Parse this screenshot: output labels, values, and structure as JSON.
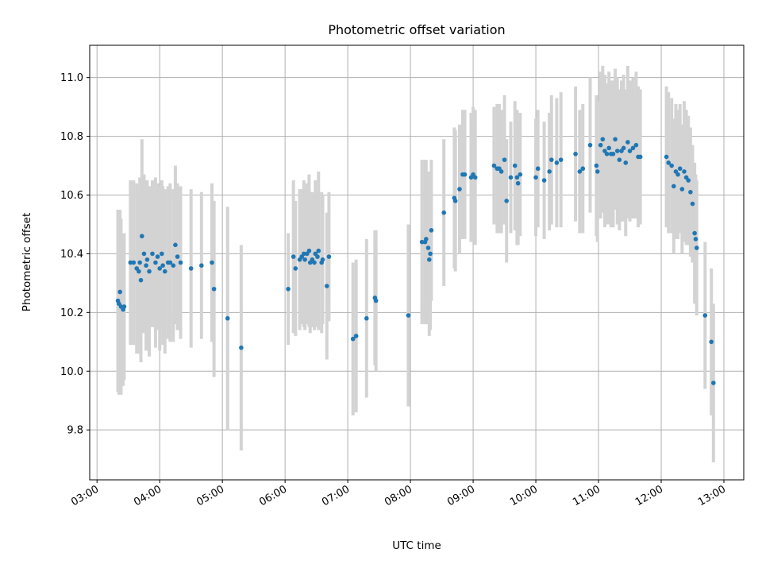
{
  "chart_data": {
    "type": "scatter",
    "title": "Photometric offset variation",
    "xlabel": "UTC time",
    "ylabel": "Photometric offset",
    "x_ticks": [
      "03:00",
      "04:00",
      "05:00",
      "06:00",
      "07:00",
      "08:00",
      "09:00",
      "10:00",
      "11:00",
      "12:00",
      "13:00"
    ],
    "y_ticks": [
      "9.8",
      "10.0",
      "10.2",
      "10.4",
      "10.6",
      "10.8",
      "11.0"
    ],
    "xlim": [
      "02:53",
      "13:19"
    ],
    "ylim": [
      9.63,
      11.11
    ],
    "grid": true,
    "colors": {
      "points": "#1f77b4",
      "error_bars": "#d3d3d3"
    },
    "series": [
      {
        "error_bars": true,
        "points": [
          [
            "03:20",
            10.24,
            0.31
          ],
          [
            "03:21",
            10.23,
            0.31
          ],
          [
            "03:22",
            10.27,
            0.28
          ],
          [
            "03:23",
            10.22,
            0.3
          ],
          [
            "03:25",
            10.21,
            0.26
          ],
          [
            "03:26",
            10.22,
            0.25
          ],
          [
            "03:32",
            10.37,
            0.28
          ],
          [
            "03:35",
            10.37,
            0.28
          ],
          [
            "03:38",
            10.35,
            0.29
          ],
          [
            "03:40",
            10.34,
            0.28
          ],
          [
            "03:41",
            10.37,
            0.29
          ],
          [
            "03:42",
            10.31,
            0.28
          ],
          [
            "03:43",
            10.46,
            0.33
          ],
          [
            "03:45",
            10.4,
            0.27
          ],
          [
            "03:47",
            10.36,
            0.29
          ],
          [
            "03:48",
            10.38,
            0.27
          ],
          [
            "03:50",
            10.34,
            0.29
          ],
          [
            "03:53",
            10.4,
            0.25
          ],
          [
            "03:56",
            10.37,
            0.29
          ],
          [
            "03:58",
            10.39,
            0.25
          ],
          [
            "04:00",
            10.35,
            0.28
          ],
          [
            "04:02",
            10.4,
            0.25
          ],
          [
            "04:03",
            10.36,
            0.27
          ],
          [
            "04:05",
            10.34,
            0.28
          ],
          [
            "04:08",
            10.37,
            0.26
          ],
          [
            "04:10",
            10.37,
            0.27
          ],
          [
            "04:13",
            10.36,
            0.26
          ],
          [
            "04:15",
            10.43,
            0.27
          ],
          [
            "04:17",
            10.39,
            0.25
          ],
          [
            "04:20",
            10.37,
            0.26
          ],
          [
            "04:30",
            10.35,
            0.27
          ],
          [
            "04:40",
            10.36,
            0.25
          ],
          [
            "04:50",
            10.37,
            0.27
          ],
          [
            "04:52",
            10.28,
            0.3
          ],
          [
            "05:05",
            10.18,
            0.38
          ],
          [
            "05:18",
            10.08,
            0.35
          ],
          [
            "06:03",
            10.28,
            0.19
          ],
          [
            "06:08",
            10.39,
            0.26
          ],
          [
            "06:10",
            10.35,
            0.23
          ],
          [
            "06:14",
            10.38,
            0.24
          ],
          [
            "06:16",
            10.39,
            0.23
          ],
          [
            "06:18",
            10.4,
            0.25
          ],
          [
            "06:19",
            10.38,
            0.24
          ],
          [
            "06:21",
            10.4,
            0.24
          ],
          [
            "06:23",
            10.41,
            0.26
          ],
          [
            "06:24",
            10.37,
            0.24
          ],
          [
            "06:26",
            10.38,
            0.23
          ],
          [
            "06:28",
            10.37,
            0.23
          ],
          [
            "06:29",
            10.4,
            0.25
          ],
          [
            "06:31",
            10.39,
            0.22
          ],
          [
            "06:32",
            10.41,
            0.27
          ],
          [
            "06:35",
            10.37,
            0.24
          ],
          [
            "06:36",
            10.38,
            0.22
          ],
          [
            "06:40",
            10.29,
            0.25
          ],
          [
            "06:42",
            10.39,
            0.22
          ],
          [
            "07:05",
            10.11,
            0.26
          ],
          [
            "07:08",
            10.12,
            0.26
          ],
          [
            "07:18",
            10.18,
            0.27
          ],
          [
            "07:26",
            10.25,
            0.23
          ],
          [
            "07:27",
            10.24,
            0.24
          ],
          [
            "07:58",
            10.19,
            0.31
          ],
          [
            "08:11",
            10.44,
            0.28
          ],
          [
            "08:14",
            10.44,
            0.28
          ],
          [
            "08:15",
            10.45,
            0.27
          ],
          [
            "08:17",
            10.42,
            0.26
          ],
          [
            "08:18",
            10.38,
            0.26
          ],
          [
            "08:19",
            10.4,
            0.26
          ],
          [
            "08:20",
            10.48,
            0.24
          ],
          [
            "08:32",
            10.54,
            0.25
          ],
          [
            "08:42",
            10.59,
            0.24
          ],
          [
            "08:43",
            10.58,
            0.24
          ],
          [
            "08:47",
            10.62,
            0.22
          ],
          [
            "08:50",
            10.67,
            0.22
          ],
          [
            "08:52",
            10.67,
            0.22
          ],
          [
            "08:58",
            10.66,
            0.22
          ],
          [
            "09:00",
            10.67,
            0.23
          ],
          [
            "09:02",
            10.66,
            0.23
          ],
          [
            "09:20",
            10.7,
            0.2
          ],
          [
            "09:23",
            10.69,
            0.22
          ],
          [
            "09:25",
            10.69,
            0.22
          ],
          [
            "09:27",
            10.68,
            0.21
          ],
          [
            "09:30",
            10.72,
            0.22
          ],
          [
            "09:32",
            10.58,
            0.21
          ],
          [
            "09:36",
            10.66,
            0.19
          ],
          [
            "09:40",
            10.7,
            0.22
          ],
          [
            "09:42",
            10.66,
            0.23
          ],
          [
            "09:43",
            10.64,
            0.21
          ],
          [
            "09:45",
            10.67,
            0.21
          ],
          [
            "10:00",
            10.66,
            0.2
          ],
          [
            "10:02",
            10.69,
            0.2
          ],
          [
            "10:08",
            10.65,
            0.2
          ],
          [
            "10:13",
            10.68,
            0.2
          ],
          [
            "10:15",
            10.72,
            0.22
          ],
          [
            "10:20",
            10.71,
            0.22
          ],
          [
            "10:24",
            10.72,
            0.23
          ],
          [
            "10:38",
            10.74,
            0.23
          ],
          [
            "10:42",
            10.68,
            0.21
          ],
          [
            "10:45",
            10.69,
            0.22
          ],
          [
            "10:52",
            10.77,
            0.23
          ],
          [
            "10:58",
            10.7,
            0.24
          ],
          [
            "10:59",
            10.68,
            0.24
          ],
          [
            "11:02",
            10.77,
            0.25
          ],
          [
            "11:04",
            10.79,
            0.25
          ],
          [
            "11:06",
            10.75,
            0.26
          ],
          [
            "11:08",
            10.74,
            0.24
          ],
          [
            "11:10",
            10.76,
            0.26
          ],
          [
            "11:12",
            10.74,
            0.25
          ],
          [
            "11:14",
            10.74,
            0.25
          ],
          [
            "11:16",
            10.79,
            0.24
          ],
          [
            "11:18",
            10.75,
            0.25
          ],
          [
            "11:20",
            10.72,
            0.24
          ],
          [
            "11:22",
            10.75,
            0.24
          ],
          [
            "11:24",
            10.76,
            0.25
          ],
          [
            "11:26",
            10.71,
            0.25
          ],
          [
            "11:28",
            10.78,
            0.26
          ],
          [
            "11:30",
            10.75,
            0.24
          ],
          [
            "11:33",
            10.76,
            0.24
          ],
          [
            "11:36",
            10.77,
            0.25
          ],
          [
            "11:38",
            10.73,
            0.24
          ],
          [
            "11:40",
            10.73,
            0.23
          ],
          [
            "12:05",
            10.73,
            0.24
          ],
          [
            "12:07",
            10.71,
            0.24
          ],
          [
            "12:10",
            10.7,
            0.23
          ],
          [
            "12:12",
            10.63,
            0.23
          ],
          [
            "12:14",
            10.68,
            0.23
          ],
          [
            "12:16",
            10.67,
            0.22
          ],
          [
            "12:18",
            10.69,
            0.22
          ],
          [
            "12:20",
            10.62,
            0.22
          ],
          [
            "12:22",
            10.68,
            0.24
          ],
          [
            "12:24",
            10.66,
            0.23
          ],
          [
            "12:26",
            10.65,
            0.22
          ],
          [
            "12:28",
            10.61,
            0.22
          ],
          [
            "12:30",
            10.57,
            0.2
          ],
          [
            "12:32",
            10.47,
            0.24
          ],
          [
            "12:33",
            10.45,
            0.22
          ],
          [
            "12:34",
            10.42,
            0.23
          ],
          [
            "12:42",
            10.19,
            0.25
          ],
          [
            "12:48",
            10.1,
            0.25
          ],
          [
            "12:50",
            9.96,
            0.27
          ]
        ]
      }
    ]
  }
}
